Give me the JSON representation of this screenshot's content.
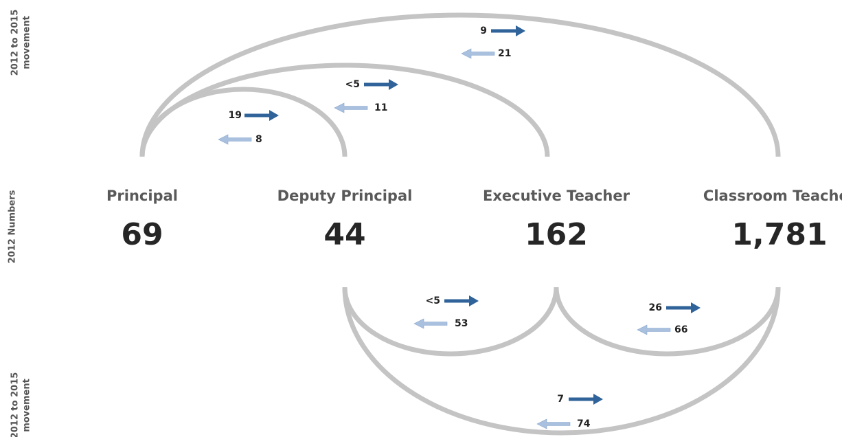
{
  "side_labels": {
    "top": [
      "2012 to 2015",
      "movement"
    ],
    "middle": "2012 Numbers",
    "bottom": [
      "2012 to 2015",
      "movement"
    ]
  },
  "nodes": [
    {
      "label": "Principal",
      "value": 69
    },
    {
      "label": "Deputy Principal",
      "value": 44
    },
    {
      "label": "Executive Teacher",
      "value": 162
    },
    {
      "label": "Classroom Teacher",
      "value": "1,781"
    }
  ],
  "top_movements": [
    {
      "forward": 19,
      "back": 8
    },
    {
      "forward": "<5",
      "back": 11
    },
    {
      "forward": 9,
      "back": 21
    }
  ],
  "bottom_movements": [
    {
      "forward": "<5",
      "back": 53
    },
    {
      "forward": 26,
      "back": 66
    },
    {
      "forward": 7,
      "back": 74
    }
  ]
}
